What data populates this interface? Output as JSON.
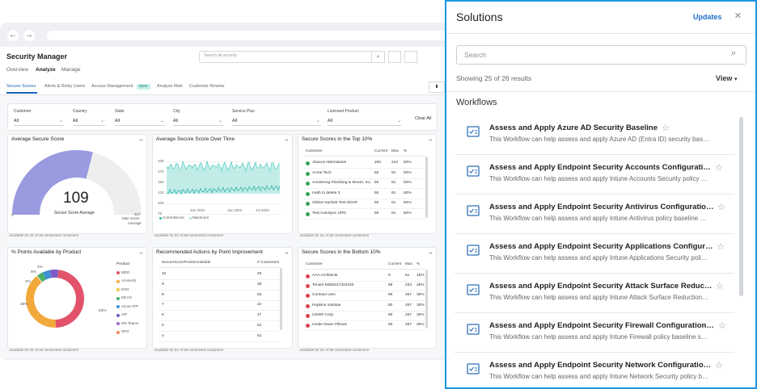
{
  "dashboard": {
    "title": "Security Manager",
    "search": "Search all security",
    "nav": [
      "Overview",
      "Analyze",
      "Manage"
    ],
    "tabs": [
      "Secure Scores",
      "Alerts & Risky Users",
      "Access Management",
      "Analyze Risk",
      "Customer Review"
    ],
    "new_badge": "NEW",
    "filters": [
      {
        "label": "Customer",
        "value": "All"
      },
      {
        "label": "Country",
        "value": "All"
      },
      {
        "label": "State",
        "value": "All"
      },
      {
        "label": "City",
        "value": "All"
      },
      {
        "label": "Service Plus",
        "value": "All"
      },
      {
        "label": "Licensed Product",
        "value": "All"
      }
    ],
    "clear": "Clear All",
    "footer": "Available for 61 of 66 connected customers",
    "avg_card": {
      "title": "Average Secure Score",
      "score": 109,
      "score_label": "Secure Score Average",
      "min": 0,
      "max": 327,
      "max_label": "Max Score",
      "avg_label": "Average"
    },
    "trend_card": {
      "title": "Average Secure Score Over Time",
      "yticks": [
        200,
        175,
        150,
        125,
        100,
        75
      ],
      "xticks": [
        "Jan 2022",
        "Apr 2022",
        "Jul 2022"
      ],
      "legend": [
        "CurrentScore",
        "MaxScore"
      ]
    },
    "top_card": {
      "title": "Secure Scores in the Top 10%",
      "columns": [
        "Customer",
        "Current",
        "Max",
        "%"
      ],
      "rows": [
        [
          "Abacus Alternatives",
          200,
          243,
          "82%"
        ],
        [
          "Acme Tech",
          50,
          61,
          "82%"
        ],
        [
          "Armstrong Plumbing & Moore, Inc.",
          50,
          61,
          "82%"
        ],
        [
          "math to delete 3",
          50,
          61,
          "82%"
        ],
        [
          "Olokot Sachek Test GDAP",
          50,
          61,
          "82%"
        ],
        [
          "Test AutoSync UPD",
          50,
          61,
          "82%"
        ]
      ]
    },
    "product_card": {
      "title": "% Points Available by Product",
      "labels": [
        "4%",
        "6%",
        "4%",
        "30%",
        "63%"
      ],
      "legend_title": "Product",
      "legend": [
        "MDO",
        "AzureAD",
        "EXO",
        "MCAS",
        "Azure ATP",
        "AIP",
        "MS Teams",
        "SPO"
      ]
    },
    "actions_card": {
      "title": "Recommended Actions by Point Improvement",
      "columns": [
        "SecureScorePointsAvailable",
        "# Customers"
      ],
      "rows": [
        [
          10,
          25
        ],
        [
          9,
          35
        ],
        [
          8,
          53
        ],
        [
          7,
          22
        ],
        [
          6,
          47
        ],
        [
          5,
          51
        ],
        [
          4,
          61
        ]
      ]
    },
    "bottom_card": {
      "title": "Secure Scores in the Bottom 10%",
      "columns": [
        "Customer",
        "Current",
        "Max",
        "%"
      ],
      "rows": [
        [
          "AAA Architects",
          9,
          61,
          "15%"
        ],
        [
          "Tenant M365x17324440",
          58,
          234,
          "25%"
        ],
        [
          "Contoso USA",
          80,
          267,
          "30%"
        ],
        [
          "Hopkins Institute",
          80,
          267,
          "30%"
        ],
        [
          "U2000 Corp.",
          80,
          267,
          "30%"
        ],
        [
          "Under Down Pillows",
          80,
          267,
          "30%"
        ]
      ]
    }
  },
  "panel": {
    "title": "Solutions",
    "updates": "Updates",
    "search": "Search",
    "results": "Showing 25 of 26 results",
    "view": "View",
    "section": "Workflows",
    "items": [
      {
        "title": "Assess and Apply Azure AD Security Baseline",
        "description": "This Workflow can help assess and apply Azure AD (Entra ID) security bas…"
      },
      {
        "title": "Assess and Apply Endpoint Security Accounts Configurati…",
        "description": "This Workflow can help assess and apply Intune Accounts Security policy …"
      },
      {
        "title": "Assess and Apply Endpoint Security Antivirus Configuratio…",
        "description": "This Workflow can help assess and apply Intune Antivirus policy baseline …"
      },
      {
        "title": "Assess and Apply Endpoint Security Applications Configur…",
        "description": "This Workflow can help assess and apply Intune Applications Security poli…"
      },
      {
        "title": "Assess and Apply Endpoint Security Attack Surface Reduc…",
        "description": "This Workflow can help assess and apply Intune Attack Surface Reduction…"
      },
      {
        "title": "Assess and Apply Endpoint Security Firewall Configuration…",
        "description": "This Workflow can help assess and apply Intune Firewall policy baseline s…"
      },
      {
        "title": "Assess and Apply Endpoint Security Network Configuratio…",
        "description": "This Workflow can help assess and apply Intune Network Security policy b…"
      }
    ]
  }
}
